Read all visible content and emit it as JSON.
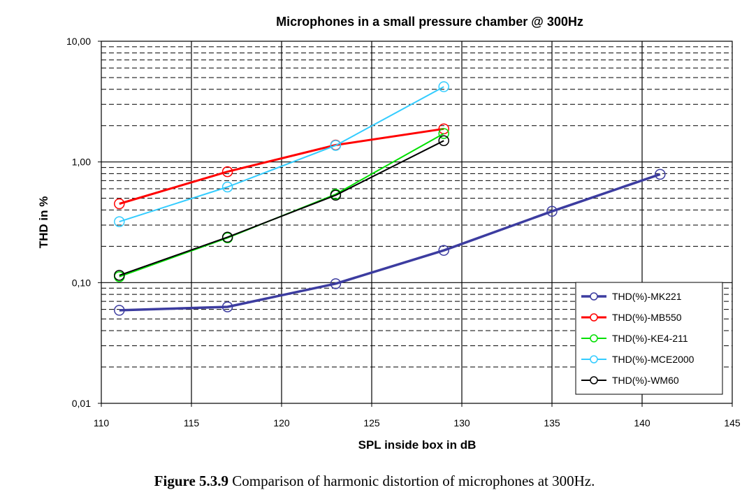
{
  "chart_data": {
    "type": "line",
    "title": "Microphones in a small pressure chamber @ 300Hz",
    "xlabel": "SPL inside box in dB",
    "ylabel": "THD in %",
    "xlim": [
      110,
      145
    ],
    "ylim": [
      0.01,
      10
    ],
    "yscale": "log",
    "x_ticks": [
      "110",
      "115",
      "120",
      "125",
      "130",
      "135",
      "140",
      "145"
    ],
    "y_ticks": [
      "0,01",
      "0,10",
      "1,00",
      "10,00"
    ],
    "grid": true,
    "legend_position": "bottom-right",
    "series": [
      {
        "name": "THD(%)-MK221",
        "color": "#3c3ca0",
        "x": [
          111,
          117,
          123,
          129,
          135,
          141
        ],
        "y": [
          0.059,
          0.063,
          0.098,
          0.185,
          0.39,
          0.79
        ]
      },
      {
        "name": "THD(%)-MB550",
        "color": "#ff0000",
        "x": [
          111,
          117,
          123,
          129
        ],
        "y": [
          0.45,
          0.83,
          1.38,
          1.88
        ]
      },
      {
        "name": "THD(%)-KE4-211",
        "color": "#00e000",
        "x": [
          111,
          117,
          123,
          129
        ],
        "y": [
          0.112,
          0.235,
          0.54,
          1.72
        ]
      },
      {
        "name": "THD(%)-MCE2000",
        "color": "#33ccff",
        "x": [
          111,
          117,
          123,
          129
        ],
        "y": [
          0.32,
          0.62,
          1.37,
          4.2
        ]
      },
      {
        "name": "THD(%)-WM60",
        "color": "#000000",
        "x": [
          111,
          117,
          123,
          129
        ],
        "y": [
          0.115,
          0.238,
          0.53,
          1.5
        ]
      }
    ]
  },
  "caption": {
    "label": "Figure 5.3.9",
    "text": " Comparison of harmonic distortion of microphones at 300Hz."
  }
}
